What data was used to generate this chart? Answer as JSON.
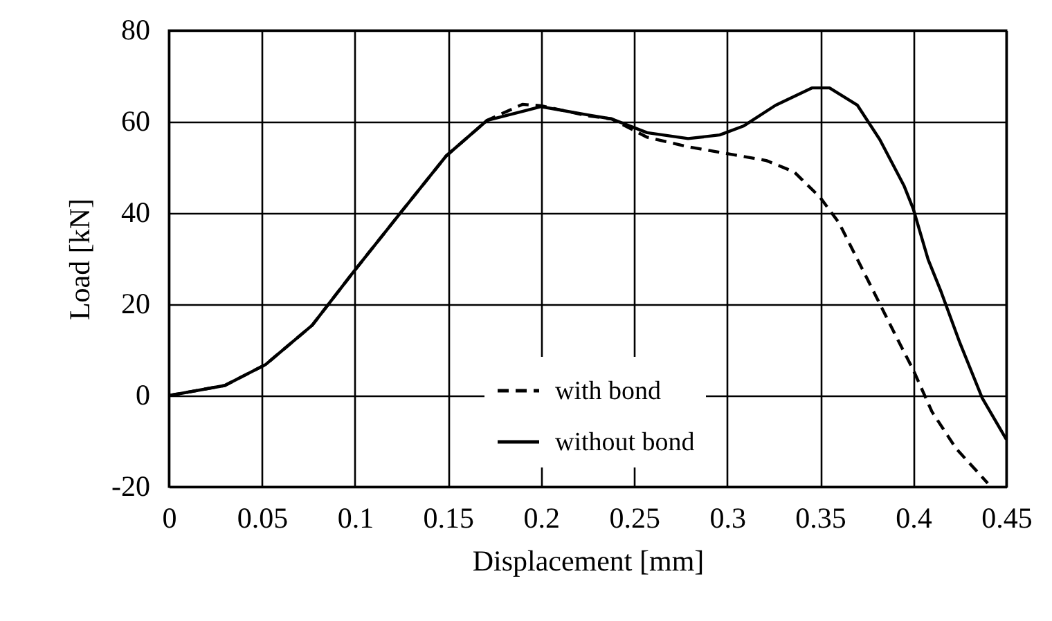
{
  "chart_data": {
    "type": "line",
    "xlabel": "Displacement [mm]",
    "ylabel": "Load [kN]",
    "xlim": [
      0,
      0.45
    ],
    "ylim": [
      -20,
      80
    ],
    "xticks": [
      0,
      0.05,
      0.1,
      0.15,
      0.2,
      0.25,
      0.3,
      0.35,
      0.4,
      0.45
    ],
    "yticks": [
      -20,
      0,
      20,
      40,
      60,
      80
    ],
    "grid": true,
    "legend": "bottom",
    "series": [
      {
        "name": "with bond",
        "color": "#000000",
        "line_style": "dashed",
        "x": [
          0,
          0.03,
          0.052,
          0.077,
          0.099,
          0.124,
          0.149,
          0.171,
          0.19,
          0.2,
          0.225,
          0.238,
          0.257,
          0.279,
          0.3,
          0.321,
          0.336,
          0.35,
          0.36,
          0.375,
          0.39,
          0.4,
          0.41,
          0.423,
          0.44
        ],
        "values": [
          0,
          2.2,
          6.8,
          15.4,
          27,
          39.8,
          52.5,
          60.3,
          63.8,
          63.5,
          61.3,
          60.6,
          56.6,
          54.5,
          53,
          51.5,
          49,
          43.4,
          37.9,
          25.8,
          13.6,
          5.6,
          -3.5,
          -11.6,
          -19.2
        ]
      },
      {
        "name": "without bond",
        "color": "#000000",
        "line_style": "solid",
        "x": [
          0,
          0.03,
          0.052,
          0.077,
          0.099,
          0.124,
          0.149,
          0.171,
          0.2,
          0.225,
          0.238,
          0.257,
          0.279,
          0.296,
          0.309,
          0.326,
          0.3455,
          0.355,
          0.37,
          0.382,
          0.395,
          0.4,
          0.408,
          0.415,
          0.425,
          0.437,
          0.45
        ],
        "values": [
          0,
          2.2,
          6.8,
          15.4,
          27,
          39.8,
          52.5,
          60.3,
          63.3,
          61.5,
          60.6,
          57.6,
          56.3,
          57.1,
          59.1,
          63.6,
          67.4,
          67.4,
          63.6,
          56.1,
          46,
          40.9,
          29.8,
          22.7,
          11.6,
          -0.5,
          -9.6
        ]
      }
    ]
  }
}
